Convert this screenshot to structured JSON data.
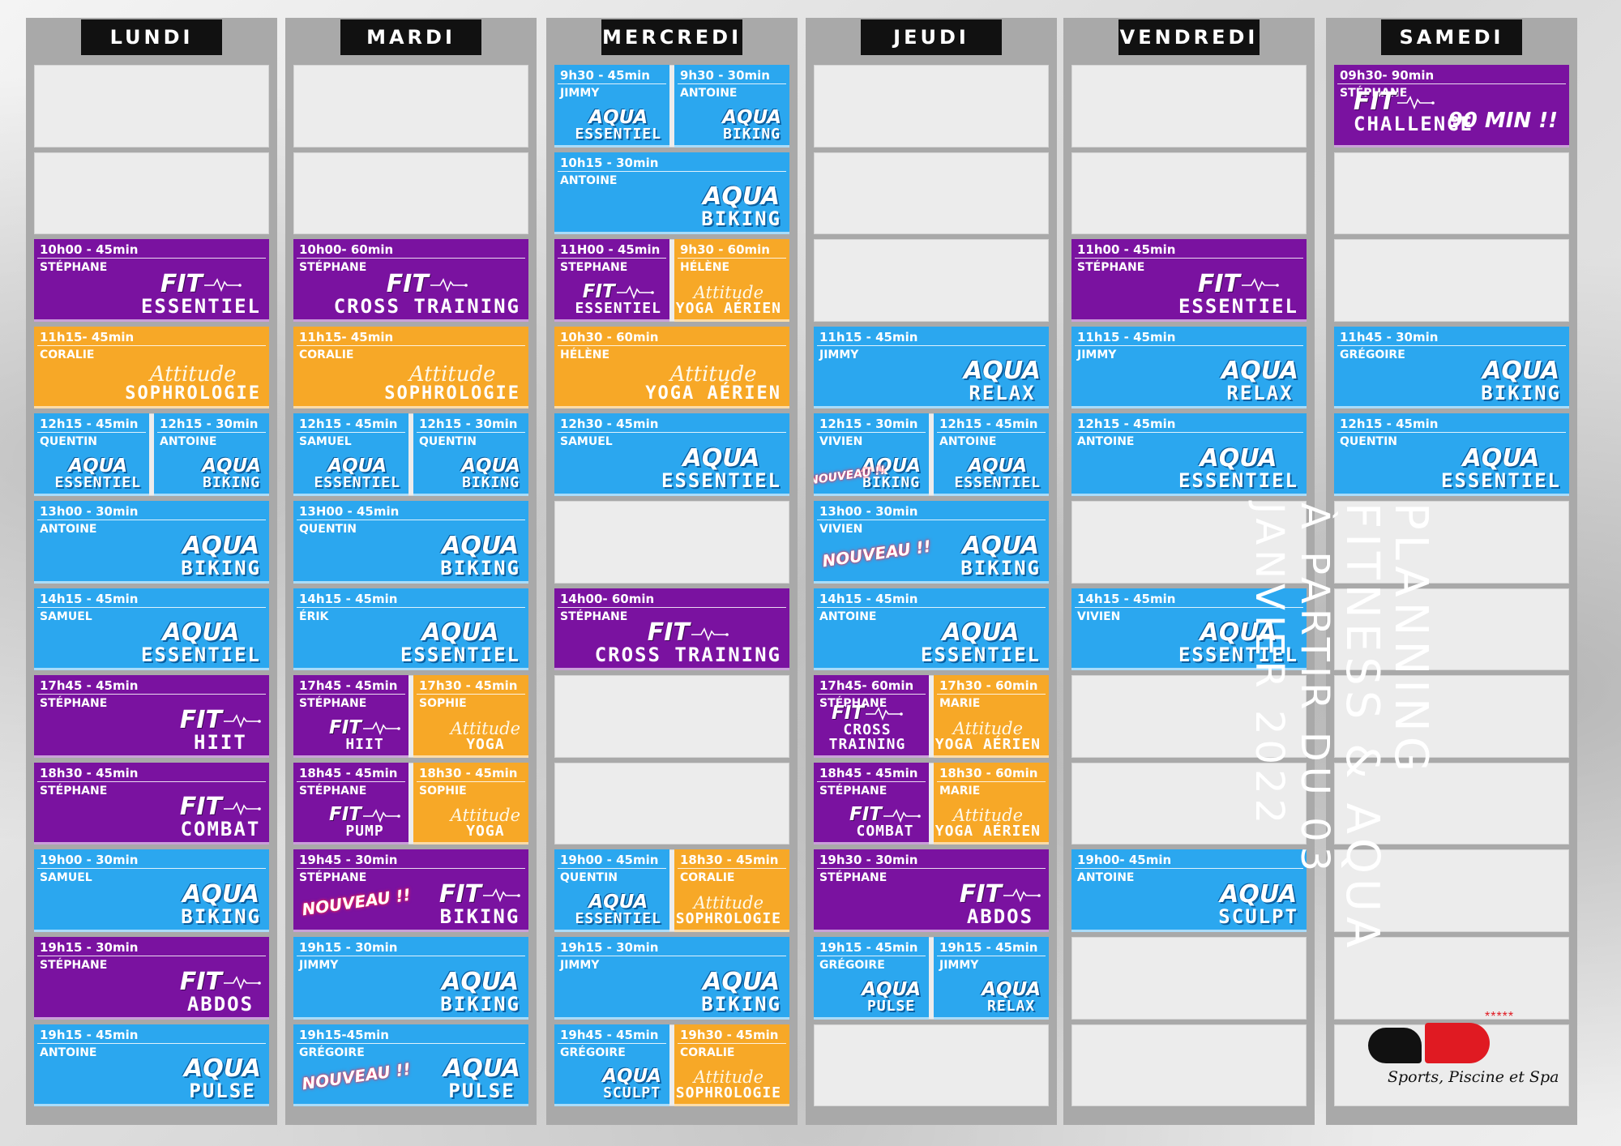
{
  "days": [
    {
      "id": "lundi",
      "label": "LUNDI"
    },
    {
      "id": "mardi",
      "label": "MARDI"
    },
    {
      "id": "mercredi",
      "label": "MERCREDI"
    },
    {
      "id": "jeudi",
      "label": "JEUDI"
    },
    {
      "id": "vendredi",
      "label": "VENDREDI"
    },
    {
      "id": "samedi",
      "label": "SAMEDI"
    }
  ],
  "title": {
    "line1": "PLANNING",
    "line2": "FITNESS & AQUA",
    "line3": "À PARTIR DU 03",
    "line4": "JANVIER 2022"
  },
  "logo": {
    "stars": "*****",
    "tagline": "Sports, Piscine et Spa"
  },
  "badges": {
    "nouveau": "NOUVEAU !!",
    "ninety": "90 MIN !!"
  },
  "classes": [
    {
      "day": 0,
      "slot": 2,
      "half": 0,
      "type": "fit",
      "time": "10h00 - 45min",
      "coach": "STÉPHANE",
      "brand": "FIT",
      "sub": "ESSENTIEL"
    },
    {
      "day": 0,
      "slot": 3,
      "half": 0,
      "type": "att",
      "time": "11h15- 45min",
      "coach": "CORALIE",
      "brand": "Attitude",
      "sub": "SOPHROLOGIE"
    },
    {
      "day": 0,
      "slot": 4,
      "half": 1,
      "type": "aqua",
      "time": "12h15 - 45min",
      "coach": "QUENTIN",
      "brand": "AQUA",
      "sub": "ESSENTIEL"
    },
    {
      "day": 0,
      "slot": 4,
      "half": 2,
      "type": "aqua",
      "time": "12h15 - 30min",
      "coach": "ANTOINE",
      "brand": "AQUA",
      "sub": "BIKING"
    },
    {
      "day": 0,
      "slot": 5,
      "half": 0,
      "type": "aqua",
      "time": "13h00 - 30min",
      "coach": "ANTOINE",
      "brand": "AQUA",
      "sub": "BIKING"
    },
    {
      "day": 0,
      "slot": 6,
      "half": 0,
      "type": "aqua",
      "time": "14h15 - 45min",
      "coach": "SAMUEL",
      "brand": "AQUA",
      "sub": "ESSENTIEL"
    },
    {
      "day": 0,
      "slot": 7,
      "half": 0,
      "type": "fit",
      "time": "17h45 - 45min",
      "coach": "STÉPHANE",
      "brand": "FIT",
      "sub": "HIIT"
    },
    {
      "day": 0,
      "slot": 8,
      "half": 0,
      "type": "fit",
      "time": "18h30 - 45min",
      "coach": "STÉPHANE",
      "brand": "FIT",
      "sub": "COMBAT"
    },
    {
      "day": 0,
      "slot": 9,
      "half": 0,
      "type": "aqua",
      "time": "19h00 - 30min",
      "coach": "SAMUEL",
      "brand": "AQUA",
      "sub": "BIKING"
    },
    {
      "day": 0,
      "slot": 10,
      "half": 0,
      "type": "fit",
      "time": "19h15 - 30min",
      "coach": "STÉPHANE",
      "brand": "FIT",
      "sub": "ABDOS"
    },
    {
      "day": 0,
      "slot": 11,
      "half": 0,
      "type": "aqua",
      "time": "19h15 - 45min",
      "coach": "ANTOINE",
      "brand": "AQUA",
      "sub": "PULSE"
    },
    {
      "day": 1,
      "slot": 2,
      "half": 0,
      "type": "fit",
      "time": "10h00- 60min",
      "coach": "STÉPHANE",
      "brand": "FIT",
      "sub": "CROSS TRAINING"
    },
    {
      "day": 1,
      "slot": 3,
      "half": 0,
      "type": "att",
      "time": "11h15- 45min",
      "coach": "CORALIE",
      "brand": "Attitude",
      "sub": "SOPHROLOGIE"
    },
    {
      "day": 1,
      "slot": 4,
      "half": 1,
      "type": "aqua",
      "time": "12h15 - 45min",
      "coach": "SAMUEL",
      "brand": "AQUA",
      "sub": "ESSENTIEL"
    },
    {
      "day": 1,
      "slot": 4,
      "half": 2,
      "type": "aqua",
      "time": "12h15 - 30min",
      "coach": "QUENTIN",
      "brand": "AQUA",
      "sub": "BIKING"
    },
    {
      "day": 1,
      "slot": 5,
      "half": 0,
      "type": "aqua",
      "time": "13H00 - 45min",
      "coach": "QUENTIN",
      "brand": "AQUA",
      "sub": "BIKING"
    },
    {
      "day": 1,
      "slot": 6,
      "half": 0,
      "type": "aqua",
      "time": "14h15 - 45min",
      "coach": "ÉRIK",
      "brand": "AQUA",
      "sub": "ESSENTIEL"
    },
    {
      "day": 1,
      "slot": 7,
      "half": 1,
      "type": "fit",
      "time": "17h45 - 45min",
      "coach": "STÉPHANE",
      "brand": "FIT",
      "sub": "HIIT"
    },
    {
      "day": 1,
      "slot": 7,
      "half": 2,
      "type": "att",
      "time": "17h30 - 45min",
      "coach": "SOPHIE",
      "brand": "Attitude",
      "sub": "YOGA"
    },
    {
      "day": 1,
      "slot": 8,
      "half": 1,
      "type": "fit",
      "time": "18h45 - 45min",
      "coach": "STÉPHANE",
      "brand": "FIT",
      "sub": "PUMP"
    },
    {
      "day": 1,
      "slot": 8,
      "half": 2,
      "type": "att",
      "time": "18h30 - 45min",
      "coach": "SOPHIE",
      "brand": "Attitude",
      "sub": "YOGA"
    },
    {
      "day": 1,
      "slot": 9,
      "half": 0,
      "type": "fit",
      "time": "19h45 - 30min",
      "coach": "STÉPHANE",
      "brand": "FIT",
      "sub": "BIKING",
      "nouveau": true
    },
    {
      "day": 1,
      "slot": 10,
      "half": 0,
      "type": "aqua",
      "time": "19h15 - 30min",
      "coach": "JIMMY",
      "brand": "AQUA",
      "sub": "BIKING"
    },
    {
      "day": 1,
      "slot": 11,
      "half": 0,
      "type": "aqua",
      "time": "19h15-45min",
      "coach": "GRÉGOIRE",
      "brand": "AQUA",
      "sub": "PULSE",
      "nouveau": true
    },
    {
      "day": 2,
      "slot": 0,
      "half": 1,
      "type": "aqua",
      "time": "9h30 - 45min",
      "coach": "JIMMY",
      "brand": "AQUA",
      "sub": "ESSENTIEL"
    },
    {
      "day": 2,
      "slot": 0,
      "half": 2,
      "type": "aqua",
      "time": "9h30 - 30min",
      "coach": "ANTOINE",
      "brand": "AQUA",
      "sub": "BIKING"
    },
    {
      "day": 2,
      "slot": 1,
      "half": 0,
      "type": "aqua",
      "time": "10h15 - 30min",
      "coach": "ANTOINE",
      "brand": "AQUA",
      "sub": "BIKING"
    },
    {
      "day": 2,
      "slot": 2,
      "half": 1,
      "type": "fit",
      "time": "11H00 - 45min",
      "coach": "STEPHANE",
      "brand": "FIT",
      "sub": "ESSENTIEL"
    },
    {
      "day": 2,
      "slot": 2,
      "half": 2,
      "type": "att",
      "time": "9h30 - 60min",
      "coach": "HÉLÈNE",
      "brand": "Attitude",
      "sub": "YOGA AÉRIEN"
    },
    {
      "day": 2,
      "slot": 3,
      "half": 0,
      "type": "att",
      "time": "10h30 - 60min",
      "coach": "HÉLÈNE",
      "brand": "Attitude",
      "sub": "YOGA AÉRIEN"
    },
    {
      "day": 2,
      "slot": 4,
      "half": 0,
      "type": "aqua",
      "time": "12h30 - 45min",
      "coach": "SAMUEL",
      "brand": "AQUA",
      "sub": "ESSENTIEL"
    },
    {
      "day": 2,
      "slot": 6,
      "half": 0,
      "type": "fit",
      "time": "14h00- 60min",
      "coach": "STÉPHANE",
      "brand": "FIT",
      "sub": "CROSS TRAINING"
    },
    {
      "day": 2,
      "slot": 9,
      "half": 1,
      "type": "aqua",
      "time": "19h00 - 45min",
      "coach": "QUENTIN",
      "brand": "AQUA",
      "sub": "ESSENTIEL"
    },
    {
      "day": 2,
      "slot": 9,
      "half": 2,
      "type": "att",
      "time": "18h30 - 45min",
      "coach": "CORALIE",
      "brand": "Attitude",
      "sub": "SOPHROLOGIE"
    },
    {
      "day": 2,
      "slot": 10,
      "half": 0,
      "type": "aqua",
      "time": "19h15 - 30min",
      "coach": "JIMMY",
      "brand": "AQUA",
      "sub": "BIKING"
    },
    {
      "day": 2,
      "slot": 11,
      "half": 1,
      "type": "aqua",
      "time": "19h45 - 45min",
      "coach": "GRÉGOIRE",
      "brand": "AQUA",
      "sub": "SCULPT"
    },
    {
      "day": 2,
      "slot": 11,
      "half": 2,
      "type": "att",
      "time": "19h30 - 45min",
      "coach": "CORALIE",
      "brand": "Attitude",
      "sub": "SOPHROLOGIE"
    },
    {
      "day": 3,
      "slot": 3,
      "half": 0,
      "type": "aqua",
      "time": "11h15 - 45min",
      "coach": "JIMMY",
      "brand": "AQUA",
      "sub": "RELAX"
    },
    {
      "day": 3,
      "slot": 4,
      "half": 1,
      "type": "aqua",
      "time": "12h15 - 30min",
      "coach": "VIVIEN",
      "brand": "AQUA",
      "sub": "BIKING",
      "nouveau": true
    },
    {
      "day": 3,
      "slot": 4,
      "half": 2,
      "type": "aqua",
      "time": "12h15 - 45min",
      "coach": "ANTOINE",
      "brand": "AQUA",
      "sub": "ESSENTIEL"
    },
    {
      "day": 3,
      "slot": 5,
      "half": 0,
      "type": "aqua",
      "time": "13h00 - 30min",
      "coach": "VIVIEN",
      "brand": "AQUA",
      "sub": "BIKING",
      "nouveau": true
    },
    {
      "day": 3,
      "slot": 6,
      "half": 0,
      "type": "aqua",
      "time": "14h15 - 45min",
      "coach": "ANTOINE",
      "brand": "AQUA",
      "sub": "ESSENTIEL"
    },
    {
      "day": 3,
      "slot": 7,
      "half": 1,
      "type": "fit",
      "time": "17h45- 60min",
      "coach": "STÉPHANE",
      "brand": "FIT",
      "sub": "CROSS TRAINING"
    },
    {
      "day": 3,
      "slot": 7,
      "half": 2,
      "type": "att",
      "time": "17h30 - 60min",
      "coach": "MARIE",
      "brand": "Attitude",
      "sub": "YOGA AÉRIEN"
    },
    {
      "day": 3,
      "slot": 8,
      "half": 1,
      "type": "fit",
      "time": "18h45 - 45min",
      "coach": "STÉPHANE",
      "brand": "FIT",
      "sub": "COMBAT"
    },
    {
      "day": 3,
      "slot": 8,
      "half": 2,
      "type": "att",
      "time": "18h30 - 60min",
      "coach": "MARIE",
      "brand": "Attitude",
      "sub": "YOGA AÉRIEN"
    },
    {
      "day": 3,
      "slot": 9,
      "half": 0,
      "type": "fit",
      "time": "19h30 - 30min",
      "coach": "STÉPHANE",
      "brand": "FIT",
      "sub": "ABDOS"
    },
    {
      "day": 3,
      "slot": 10,
      "half": 1,
      "type": "aqua",
      "time": "19h15 - 45min",
      "coach": "GRÉGOIRE",
      "brand": "AQUA",
      "sub": "PULSE"
    },
    {
      "day": 3,
      "slot": 10,
      "half": 2,
      "type": "aqua",
      "time": "19h15 - 45min",
      "coach": "JIMMY",
      "brand": "AQUA",
      "sub": "RELAX"
    },
    {
      "day": 4,
      "slot": 2,
      "half": 0,
      "type": "fit",
      "time": "11h00 - 45min",
      "coach": "STÉPHANE",
      "brand": "FIT",
      "sub": "ESSENTIEL"
    },
    {
      "day": 4,
      "slot": 3,
      "half": 0,
      "type": "aqua",
      "time": "11h15 - 45min",
      "coach": "JIMMY",
      "brand": "AQUA",
      "sub": "RELAX"
    },
    {
      "day": 4,
      "slot": 4,
      "half": 0,
      "type": "aqua",
      "time": "12h15 - 45min",
      "coach": "ANTOINE",
      "brand": "AQUA",
      "sub": "ESSENTIEL"
    },
    {
      "day": 4,
      "slot": 6,
      "half": 0,
      "type": "aqua",
      "time": "14h15 - 45min",
      "coach": "VIVIEN",
      "brand": "AQUA",
      "sub": "ESSENTIEL"
    },
    {
      "day": 4,
      "slot": 9,
      "half": 0,
      "type": "aqua",
      "time": "19h00- 45min",
      "coach": "ANTOINE",
      "brand": "AQUA",
      "sub": "SCULPT"
    },
    {
      "day": 5,
      "slot": 0,
      "half": 0,
      "type": "fit",
      "time": "09h30- 90min",
      "coach": "STÉPHANE",
      "brand": "FIT",
      "sub": "CHALLENGE",
      "ninety": true
    },
    {
      "day": 5,
      "slot": 3,
      "half": 0,
      "type": "aqua",
      "time": "11h45 - 30min",
      "coach": "GRÉGOIRE",
      "brand": "AQUA",
      "sub": "BIKING"
    },
    {
      "day": 5,
      "slot": 4,
      "half": 0,
      "type": "aqua",
      "time": "12h15 - 45min",
      "coach": "QUENTIN",
      "brand": "AQUA",
      "sub": "ESSENTIEL"
    }
  ]
}
